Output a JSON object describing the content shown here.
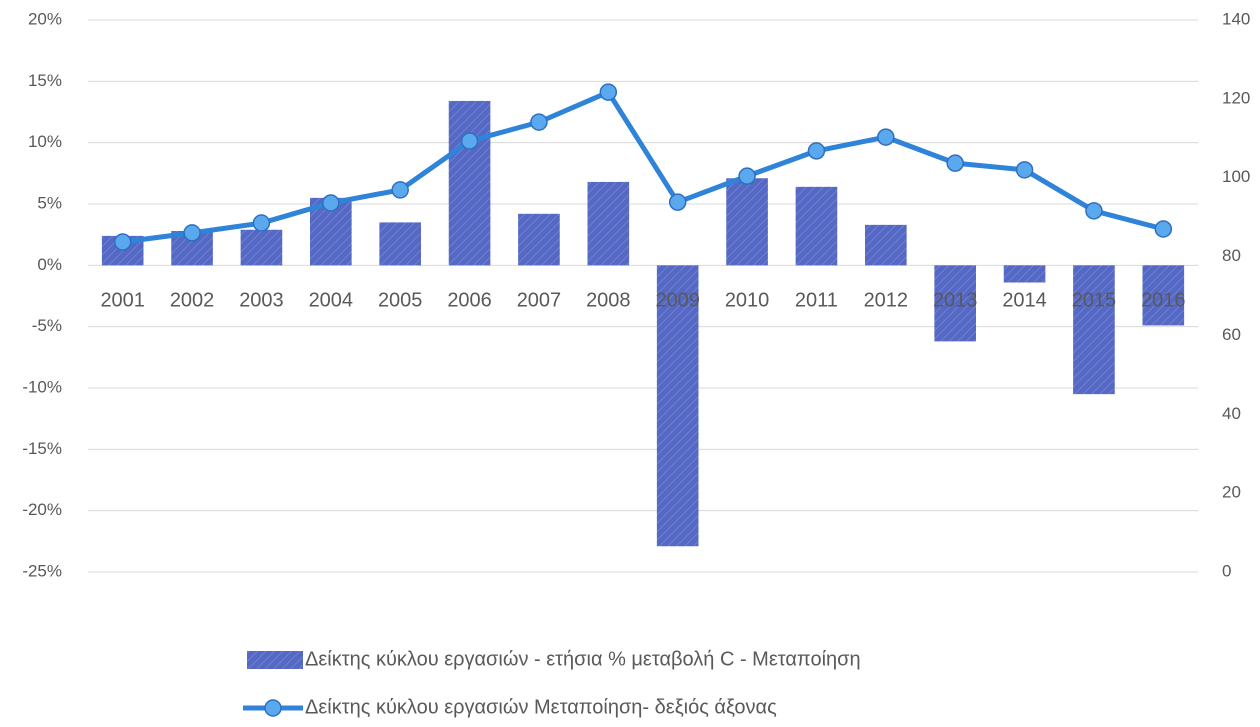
{
  "chart_data": {
    "type": "bar-line",
    "categories": [
      "2001",
      "2002",
      "2003",
      "2004",
      "2005",
      "2006",
      "2007",
      "2008",
      "2009",
      "2010",
      "2011",
      "2012",
      "2013",
      "2014",
      "2015",
      "2016"
    ],
    "series": [
      {
        "name": "Δείκτης κύκλου εργασιών - ετήσια % μεταβολή C - Μεταποίηση",
        "type": "bar",
        "color": "#5568c4",
        "values": [
          2.4,
          2.8,
          2.9,
          5.5,
          3.5,
          13.4,
          4.2,
          6.8,
          -22.9,
          7.1,
          6.4,
          3.3,
          -6.2,
          -1.4,
          -10.5,
          -4.9
        ]
      },
      {
        "name": "Δείκτης κύκλου εργασιών Μεταποίηση- δεξιός άξονας",
        "type": "line",
        "color": "#2f83d9",
        "axis": "y2",
        "values": [
          83.7,
          86,
          88.5,
          93.6,
          96.9,
          109.3,
          114.1,
          121.7,
          93.8,
          100.4,
          106.8,
          110.3,
          103.7,
          102,
          91.6,
          87
        ]
      }
    ],
    "ylim": [
      -25,
      20
    ],
    "yticks": [
      {
        "value": -25,
        "label": "-25%"
      },
      {
        "value": -20,
        "label": "-20%"
      },
      {
        "value": -15,
        "label": "-15%"
      },
      {
        "value": -10,
        "label": "-10%"
      },
      {
        "value": -5,
        "label": "-5%"
      },
      {
        "value": 0,
        "label": "0%"
      },
      {
        "value": 5,
        "label": "5%"
      },
      {
        "value": 10,
        "label": "10%"
      },
      {
        "value": 15,
        "label": "15%"
      },
      {
        "value": 20,
        "label": "20%"
      }
    ],
    "y2lim": [
      0,
      140
    ],
    "y2ticks": [
      0,
      20,
      40,
      60,
      80,
      100,
      120,
      140
    ],
    "grid": true,
    "legend": "bottom"
  }
}
